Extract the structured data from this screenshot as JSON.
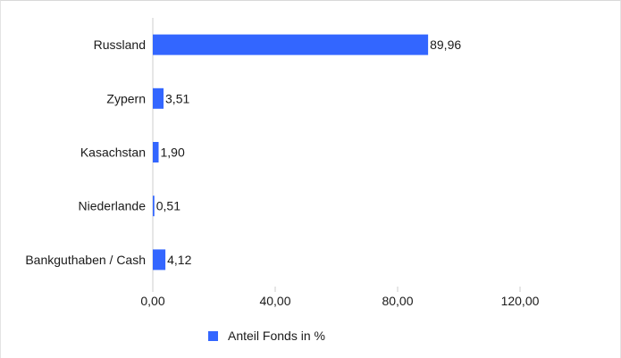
{
  "chart_data": {
    "type": "bar",
    "orientation": "horizontal",
    "categories": [
      "Russland",
      "Zypern",
      "Kasachstan",
      "Niederlande",
      "Bankguthaben / Cash"
    ],
    "series": [
      {
        "name": "Anteil Fonds in %",
        "values": [
          89.96,
          3.51,
          1.9,
          0.51,
          4.12
        ],
        "labels": [
          "89,96",
          "3,51",
          "1,90",
          "0,51",
          "4,12"
        ]
      }
    ],
    "xlim": [
      0,
      120
    ],
    "xticks": [
      0,
      40,
      80,
      120
    ],
    "xtick_labels": [
      "0,00",
      "40,00",
      "80,00",
      "120,00"
    ],
    "grid": false,
    "legend_position": "bottom",
    "colors": {
      "bar": "#3366ff",
      "axis": "#cccccc"
    }
  }
}
